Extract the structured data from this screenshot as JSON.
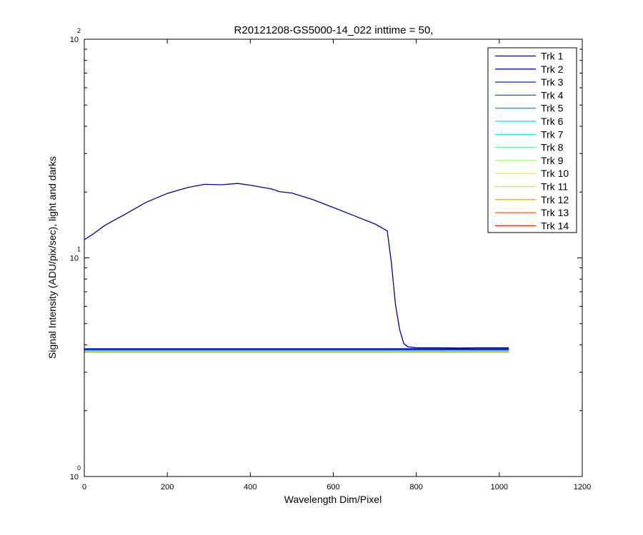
{
  "chart_data": {
    "type": "line",
    "title": "R20121208-GS5000-14_022 inttime = 50,",
    "xlabel": "Wavelength Dim/Pixel",
    "ylabel": "Signal Intensity (ADU/pix/sec), light and darks",
    "xlim": [
      0,
      1200
    ],
    "ylim": [
      1,
      100
    ],
    "yscale": "log",
    "grid": false,
    "legend_position": "top-right",
    "x_ticks": [
      0,
      200,
      400,
      600,
      800,
      1000,
      1200
    ],
    "x_tick_labels": [
      "0",
      "200",
      "400",
      "600",
      "800",
      "1000",
      "1200"
    ],
    "y_ticks": [
      1,
      10,
      100
    ],
    "y_tick_labels": [
      {
        "base": "10",
        "exp": "0"
      },
      {
        "base": "10",
        "exp": "1"
      },
      {
        "base": "10",
        "exp": "2"
      }
    ],
    "series": [
      {
        "name": "Trk 1",
        "color": "#00008f",
        "x": [
          0,
          20,
          50,
          100,
          150,
          200,
          250,
          290,
          330,
          370,
          400,
          450,
          470,
          500,
          550,
          600,
          650,
          700,
          730,
          740,
          750,
          760,
          770,
          780,
          800,
          850,
          900,
          950,
          1000,
          1023
        ],
        "y": [
          12.1,
          12.8,
          14.1,
          15.9,
          18.0,
          19.7,
          21.0,
          21.7,
          21.6,
          21.9,
          21.5,
          20.7,
          20.1,
          19.8,
          18.5,
          17.0,
          15.6,
          14.3,
          13.3,
          9.5,
          6.1,
          4.7,
          4.05,
          3.92,
          3.88,
          3.88,
          3.87,
          3.88,
          3.88,
          3.88
        ]
      },
      {
        "name": "Trk 2",
        "color": "#0000cf",
        "x": [
          0,
          1023
        ],
        "y": [
          3.84,
          3.84
        ]
      },
      {
        "name": "Trk 3",
        "color": "#0020ff",
        "x": [
          0,
          1023
        ],
        "y": [
          3.82,
          3.82
        ]
      },
      {
        "name": "Trk 4",
        "color": "#0060ff",
        "x": [
          0,
          1023
        ],
        "y": [
          3.8,
          3.8
        ]
      },
      {
        "name": "Trk 5",
        "color": "#00a0ff",
        "x": [
          0,
          1023
        ],
        "y": [
          3.79,
          3.79
        ]
      },
      {
        "name": "Trk 6",
        "color": "#00dfff",
        "x": [
          0,
          1023
        ],
        "y": [
          3.78,
          3.78
        ]
      },
      {
        "name": "Trk 7",
        "color": "#20ffdf",
        "x": [
          0,
          1023
        ],
        "y": [
          3.77,
          3.77
        ]
      },
      {
        "name": "Trk 8",
        "color": "#60ff9f",
        "x": [
          0,
          1023
        ],
        "y": [
          3.76,
          3.76
        ]
      },
      {
        "name": "Trk 9",
        "color": "#9fff60",
        "x": [
          0,
          1023
        ],
        "y": [
          3.76,
          3.76
        ]
      },
      {
        "name": "Trk 10",
        "color": "#dfff20",
        "x": [
          0,
          1023
        ],
        "y": [
          3.75,
          3.75
        ]
      },
      {
        "name": "Trk 11",
        "color": "#ffdf00",
        "x": [
          0,
          1023
        ],
        "y": [
          3.74,
          3.74
        ]
      },
      {
        "name": "Trk 12",
        "color": "#ff9f00",
        "x": [
          0,
          1023
        ],
        "y": [
          3.73,
          3.73
        ]
      },
      {
        "name": "Trk 13",
        "color": "#ff6000",
        "x": [
          0,
          1023
        ],
        "y": [
          3.72,
          3.72
        ]
      },
      {
        "name": "Trk 14",
        "color": "#ff2000",
        "x": [
          0,
          1023
        ],
        "y": [
          3.71,
          3.71
        ]
      }
    ]
  }
}
